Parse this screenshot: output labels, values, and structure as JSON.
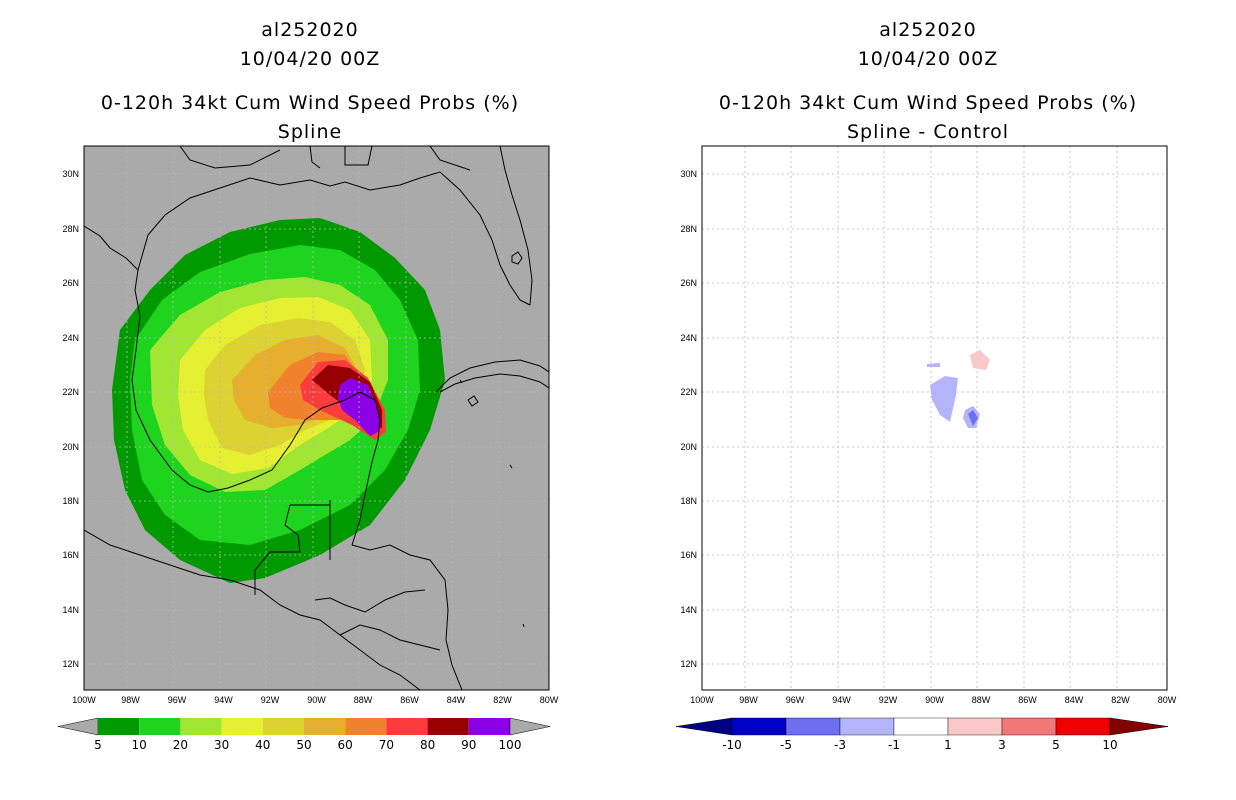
{
  "left": {
    "line1": "al252020",
    "line2": "10/04/20 00Z",
    "line3": "0-120h 34kt Cum Wind Speed Probs (%)",
    "line4": "Spline",
    "colorbar": {
      "labels": [
        "5",
        "10",
        "20",
        "30",
        "40",
        "50",
        "60",
        "70",
        "80",
        "90",
        "100"
      ],
      "colors": [
        "#009a00",
        "#1ed41e",
        "#a0e632",
        "#e6f032",
        "#dcd232",
        "#e6af2d",
        "#f0822d",
        "#fa3c3c",
        "#960000",
        "#8c00e6"
      ]
    }
  },
  "right": {
    "line1": "al252020",
    "line2": "10/04/20 00Z",
    "line3": "0-120h 34kt Cum Wind Speed Probs (%)",
    "line4": "Spline - Control",
    "colorbar": {
      "labels": [
        "-10",
        "-5",
        "-3",
        "-1",
        "1",
        "3",
        "5",
        "10"
      ],
      "colors": [
        "#0000c8",
        "#6e6ef0",
        "#b4b4fa",
        "#ffffff",
        "#fac8c8",
        "#f07878",
        "#f00000"
      ],
      "low_tip": "#000082",
      "high_tip": "#820000"
    }
  },
  "axes": {
    "lat_labels": [
      "30N",
      "28N",
      "26N",
      "24N",
      "22N",
      "20N",
      "18N",
      "16N",
      "14N",
      "12N"
    ],
    "lon_labels": [
      "100W",
      "98W",
      "96W",
      "94W",
      "92W",
      "90W",
      "88W",
      "86W",
      "84W",
      "82W",
      "80W"
    ]
  }
}
